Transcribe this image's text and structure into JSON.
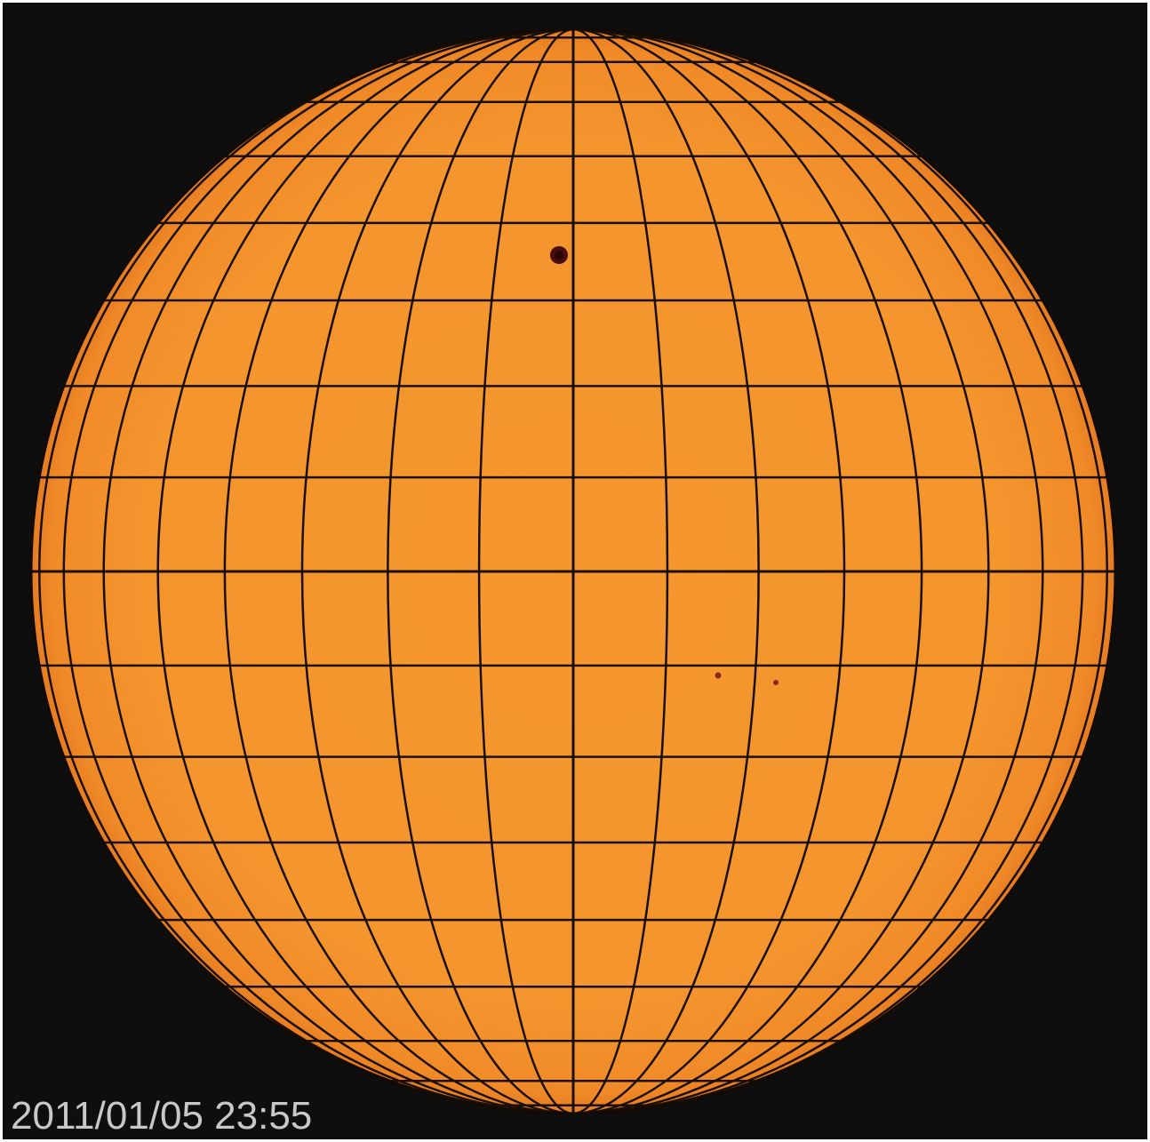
{
  "timestamp": "2011/01/05 23:55"
}
